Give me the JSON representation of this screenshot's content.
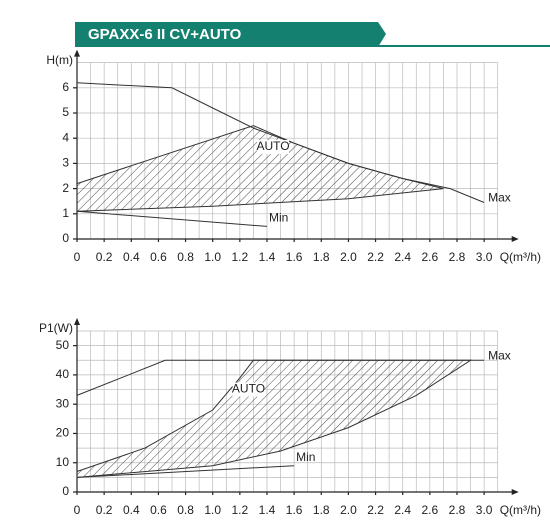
{
  "title": "GPAXX-6 II CV+AUTO",
  "chart_data": [
    {
      "type": "line",
      "ylabel": "H(m)",
      "xlabel": "Q(m³/h)",
      "xlim": [
        0,
        3.1
      ],
      "ylim": [
        0,
        7
      ],
      "xticks": [
        0,
        0.2,
        0.4,
        0.6,
        0.8,
        {
          "value": 1,
          "label": "1.0"
        },
        1.2,
        1.4,
        1.6,
        1.8,
        {
          "value": 2,
          "label": "2.0"
        },
        2.2,
        2.4,
        2.6,
        2.8,
        {
          "value": 3,
          "label": "3.0"
        }
      ],
      "yticks": [
        0,
        1,
        2,
        3,
        4,
        5,
        6
      ],
      "xgrid_step": 0.1,
      "ygrid_step": 1,
      "series": [
        {
          "name": "Max",
          "color": "#333333",
          "x": [
            0,
            0.7,
            1.0,
            1.3,
            1.6,
            2.0,
            2.4,
            2.75,
            3.0
          ],
          "values": [
            6.2,
            6.0,
            5.2,
            4.4,
            3.8,
            3.0,
            2.4,
            2.0,
            1.45
          ]
        },
        {
          "name": "Min",
          "color": "#333333",
          "x": [
            0,
            1.4
          ],
          "values": [
            1.1,
            0.5
          ]
        },
        {
          "name": "AUTO",
          "color": "#333333",
          "x": [
            0,
            1.3,
            1.6,
            2.0,
            2.4,
            2.7,
            2.0,
            1.0,
            0
          ],
          "values": [
            2.2,
            4.5,
            3.8,
            3.0,
            2.4,
            2.0,
            1.6,
            1.3,
            1.1
          ]
        }
      ]
    },
    {
      "type": "line",
      "ylabel": "P1(W)",
      "xlabel": "Q(m³/h)",
      "xlim": [
        0,
        3.1
      ],
      "ylim": [
        0,
        55
      ],
      "xticks": [
        0,
        0.2,
        0.4,
        0.6,
        0.8,
        {
          "value": 1,
          "label": "1.0"
        },
        1.2,
        1.4,
        1.6,
        1.8,
        {
          "value": 2,
          "label": "2.0"
        },
        2.2,
        2.4,
        2.6,
        2.8,
        {
          "value": 3,
          "label": "3.0"
        }
      ],
      "yticks": [
        0,
        10,
        20,
        30,
        40,
        50
      ],
      "xgrid_step": 0.1,
      "ygrid_step": 5,
      "series": [
        {
          "name": "Max",
          "color": "#333333",
          "x": [
            0,
            0.65,
            3.0
          ],
          "values": [
            33,
            45,
            45
          ]
        },
        {
          "name": "Min",
          "color": "#333333",
          "x": [
            0,
            1.6
          ],
          "values": [
            5,
            9
          ]
        },
        {
          "name": "AUTO",
          "color": "#333333",
          "x": [
            0,
            0.5,
            1.0,
            1.2,
            1.3,
            2.9,
            2.5,
            2.0,
            1.5,
            1.0,
            0
          ],
          "values": [
            7,
            15,
            28,
            39,
            45,
            45,
            33,
            22,
            14,
            9,
            5
          ]
        }
      ]
    }
  ]
}
